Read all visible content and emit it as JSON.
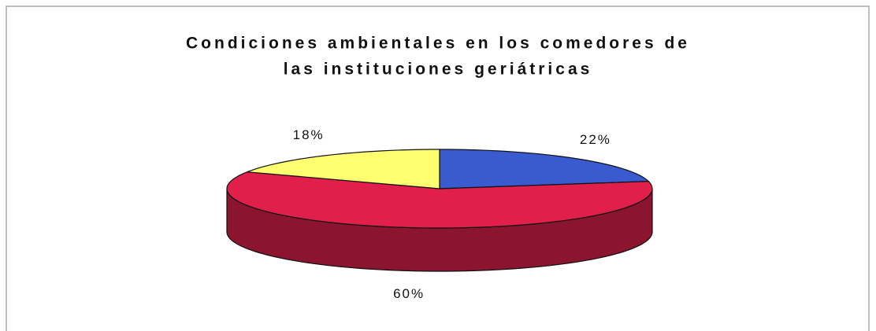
{
  "chart_data": {
    "type": "pie3d",
    "title": [
      "Condiciones ambientales en los comedores de",
      "las instituciones geriátricas"
    ],
    "values": [
      22,
      60,
      18
    ],
    "value_labels": [
      "22%",
      "60%",
      "18%"
    ],
    "colors": [
      "#3a5bd0",
      "#e0204a",
      "#ffff70"
    ]
  }
}
